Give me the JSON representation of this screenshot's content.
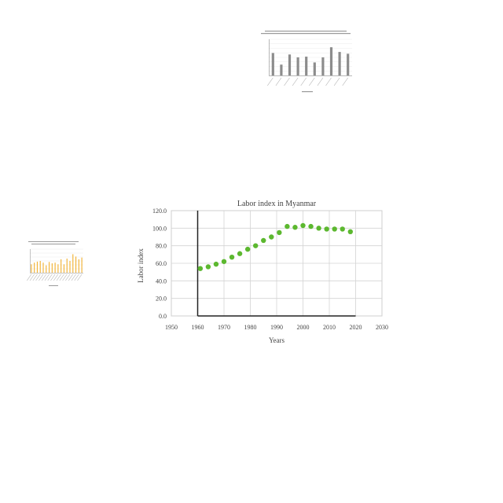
{
  "main": {
    "chart_data": {
      "type": "scatter",
      "title": "Labor index in Myanmar",
      "xlabel": "Years",
      "ylabel": "Labor index",
      "xlim": [
        1950,
        2030
      ],
      "ylim": [
        0,
        120
      ],
      "x_ticks": [
        "1950",
        "1960",
        "1970",
        "1980",
        "1990",
        "2000",
        "2010",
        "2020",
        "2030"
      ],
      "y_ticks": [
        "0.0",
        "20.0",
        "40.0",
        "60.0",
        "80.0",
        "100.0",
        "120.0"
      ],
      "grid": true,
      "legend": "none",
      "color": "#5cb82f",
      "x": [
        1961,
        1964,
        1967,
        1970,
        1973,
        1976,
        1979,
        1982,
        1985,
        1988,
        1991,
        1994,
        1997,
        2000,
        2003,
        2006,
        2009,
        2012,
        2015,
        2018
      ],
      "y": [
        54,
        56,
        59,
        62,
        67,
        71,
        76,
        80,
        86,
        90,
        95,
        102,
        101,
        103,
        102,
        100,
        99,
        99,
        99,
        96
      ]
    }
  },
  "thumbnails": {
    "top": {
      "chart_data": {
        "type": "bar",
        "color": "#8c8c8c",
        "values": [
          62,
          30,
          58,
          50,
          52,
          36,
          50,
          78,
          65,
          60
        ]
      }
    },
    "left": {
      "chart_data": {
        "type": "bar",
        "color": "#f2b233",
        "values": [
          25,
          30,
          33,
          35,
          30,
          22,
          32,
          28,
          30,
          25,
          40,
          25,
          42,
          35,
          55,
          48,
          40,
          45
        ]
      }
    }
  }
}
